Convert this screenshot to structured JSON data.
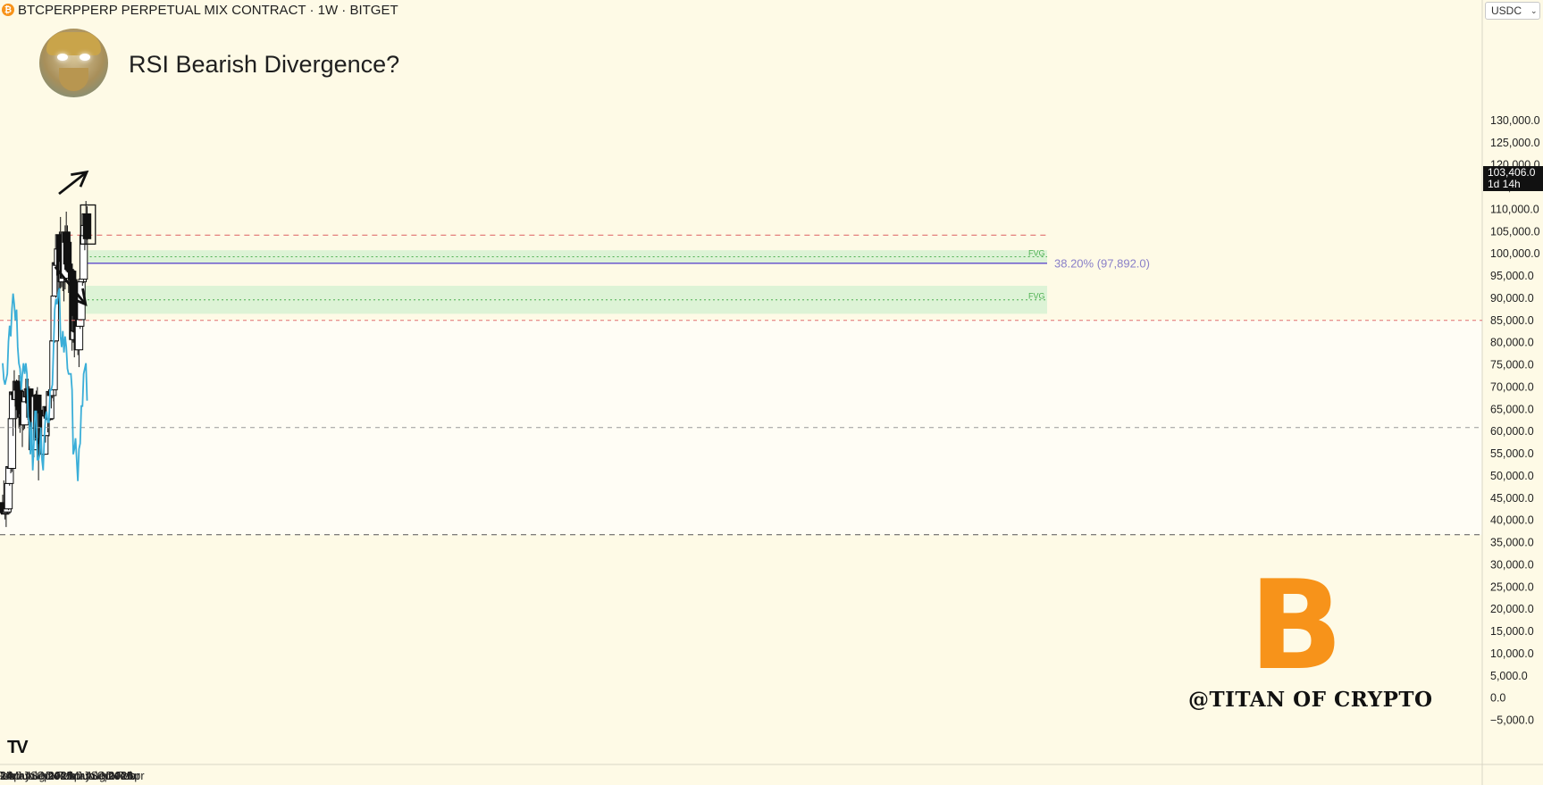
{
  "header": {
    "symbol_line": "BTCPERPPERP PERPETUAL MIX CONTRACT · 1W · BITGET",
    "coin_icon": "bitcoin-icon"
  },
  "annotation_title": "RSI Bearish Divergence?",
  "currency_select": {
    "value": "USDC"
  },
  "price_tag": {
    "price": "103,406.0",
    "countdown": "1d 14h"
  },
  "fib_label": "38.20% (97,892.0)",
  "fvg_label": "FVG",
  "tv_logo": "TV",
  "btc_logo": "B",
  "watermark": "@TITAN OF CRYPTO",
  "colors": {
    "background": "#fefae6",
    "rsi_line": "#3aaed8",
    "fvg_fill": "#d9f2d4",
    "fvg_text": "#4caf50",
    "resistance": "#e07070",
    "fib": "#6a5acd",
    "bitcoin": "#f7931a"
  },
  "chart_data": {
    "type": "candlestick",
    "title": "RSI Bearish Divergence?",
    "price_axis": {
      "ticks": [
        "130,000.0",
        "125,000.0",
        "120,000.0",
        "115,000.0",
        "110,000.0",
        "105,000.0",
        "100,000.0",
        "95,000.0",
        "90,000.0",
        "85,000.0",
        "80,000.0",
        "75,000.0",
        "70,000.0",
        "65,000.0",
        "60,000.0",
        "55,000.0",
        "50,000.0",
        "45,000.0",
        "40,000.0",
        "35,000.0",
        "30,000.0",
        "25,000.0",
        "20,000.0",
        "15,000.0",
        "10,000.0",
        "5,000.0",
        "0.0",
        "−5,000.0"
      ],
      "range": [
        -5000,
        130000
      ]
    },
    "time_axis": {
      "start": "2024-01-01",
      "end": "2026-05-01",
      "ticks": [
        {
          "label": "24",
          "date": "2024-01-01",
          "bold": true
        },
        {
          "label": "Feb",
          "date": "2024-02-01"
        },
        {
          "label": "Mar",
          "date": "2024-03-01"
        },
        {
          "label": "Apr",
          "date": "2024-04-01"
        },
        {
          "label": "May",
          "date": "2024-05-01"
        },
        {
          "label": "Jun",
          "date": "2024-06-01"
        },
        {
          "label": "Jul",
          "date": "2024-07-01"
        },
        {
          "label": "Aug",
          "date": "2024-08-01"
        },
        {
          "label": "Sep",
          "date": "2024-09-01"
        },
        {
          "label": "Oct",
          "date": "2024-10-01"
        },
        {
          "label": "Nov",
          "date": "2024-11-01"
        },
        {
          "label": "Dec",
          "date": "2024-12-01"
        },
        {
          "label": "2025",
          "date": "2025-01-01",
          "bold": true
        },
        {
          "label": "Feb",
          "date": "2025-02-01"
        },
        {
          "label": "Mar",
          "date": "2025-03-01"
        },
        {
          "label": "Apr",
          "date": "2025-04-01"
        },
        {
          "label": "May",
          "date": "2025-05-01"
        },
        {
          "label": "Jun",
          "date": "2025-06-01"
        },
        {
          "label": "Jul",
          "date": "2025-07-01"
        },
        {
          "label": "Aug",
          "date": "2025-08-01"
        },
        {
          "label": "Sep",
          "date": "2025-09-01"
        },
        {
          "label": "Oct",
          "date": "2025-10-01"
        },
        {
          "label": "Nov",
          "date": "2025-11-01"
        },
        {
          "label": "Dec",
          "date": "2025-12-01"
        },
        {
          "label": "2026",
          "date": "2026-01-01",
          "bold": true
        },
        {
          "label": "Feb",
          "date": "2026-02-01"
        },
        {
          "label": "Mar",
          "date": "2026-03-01"
        },
        {
          "label": "Apr",
          "date": "2026-04-01"
        }
      ]
    },
    "candles": [
      {
        "date": "2024-01-01",
        "o": 44000,
        "h": 45800,
        "l": 42000,
        "c": 42300
      },
      {
        "date": "2024-01-08",
        "o": 43500,
        "h": 49000,
        "l": 41500,
        "c": 41700
      },
      {
        "date": "2024-01-15",
        "o": 41700,
        "h": 43000,
        "l": 40200,
        "c": 41600
      },
      {
        "date": "2024-01-22",
        "o": 41600,
        "h": 42200,
        "l": 38500,
        "c": 41900
      },
      {
        "date": "2024-01-29",
        "o": 41900,
        "h": 43800,
        "l": 41300,
        "c": 42600
      },
      {
        "date": "2024-02-05",
        "o": 42600,
        "h": 48600,
        "l": 42300,
        "c": 48300
      },
      {
        "date": "2024-02-12",
        "o": 48300,
        "h": 52800,
        "l": 47800,
        "c": 52100
      },
      {
        "date": "2024-02-19",
        "o": 52100,
        "h": 52600,
        "l": 50600,
        "c": 51700
      },
      {
        "date": "2024-02-26",
        "o": 51700,
        "h": 64000,
        "l": 50900,
        "c": 62900
      },
      {
        "date": "2024-03-04",
        "o": 62900,
        "h": 70000,
        "l": 59000,
        "c": 68900
      },
      {
        "date": "2024-03-11",
        "o": 68900,
        "h": 73800,
        "l": 68000,
        "c": 68300
      },
      {
        "date": "2024-03-18",
        "o": 68300,
        "h": 68800,
        "l": 60800,
        "c": 67200
      },
      {
        "date": "2024-03-25",
        "o": 67200,
        "h": 71700,
        "l": 66500,
        "c": 71300
      },
      {
        "date": "2024-04-01",
        "o": 71300,
        "h": 71500,
        "l": 65000,
        "c": 69300
      },
      {
        "date": "2024-04-08",
        "o": 69300,
        "h": 72700,
        "l": 60700,
        "c": 65700
      },
      {
        "date": "2024-04-15",
        "o": 65700,
        "h": 67000,
        "l": 59700,
        "c": 64900
      },
      {
        "date": "2024-04-22",
        "o": 64900,
        "h": 67200,
        "l": 62500,
        "c": 63200
      },
      {
        "date": "2024-04-29",
        "o": 63200,
        "h": 64700,
        "l": 56500,
        "c": 64000
      },
      {
        "date": "2024-05-06",
        "o": 64000,
        "h": 65500,
        "l": 60300,
        "c": 61500
      },
      {
        "date": "2024-05-13",
        "o": 61500,
        "h": 67700,
        "l": 60600,
        "c": 66700
      },
      {
        "date": "2024-05-20",
        "o": 66700,
        "h": 71900,
        "l": 66300,
        "c": 69000
      },
      {
        "date": "2024-05-27",
        "o": 69000,
        "h": 70000,
        "l": 66600,
        "c": 67800
      },
      {
        "date": "2024-06-03",
        "o": 67800,
        "h": 71900,
        "l": 67200,
        "c": 69600
      },
      {
        "date": "2024-06-10",
        "o": 69600,
        "h": 70200,
        "l": 65000,
        "c": 66600
      },
      {
        "date": "2024-06-17",
        "o": 66600,
        "h": 66800,
        "l": 63400,
        "c": 63200
      },
      {
        "date": "2024-06-24",
        "o": 63200,
        "h": 64500,
        "l": 58500,
        "c": 62700
      },
      {
        "date": "2024-07-01",
        "o": 62700,
        "h": 63800,
        "l": 53500,
        "c": 55900
      },
      {
        "date": "2024-07-08",
        "o": 55900,
        "h": 61400,
        "l": 54200,
        "c": 60800
      },
      {
        "date": "2024-07-15",
        "o": 60800,
        "h": 68500,
        "l": 60600,
        "c": 67900
      },
      {
        "date": "2024-07-22",
        "o": 67900,
        "h": 69200,
        "l": 63500,
        "c": 68200
      },
      {
        "date": "2024-07-29",
        "o": 68200,
        "h": 70000,
        "l": 57100,
        "c": 58100
      },
      {
        "date": "2024-08-05",
        "o": 58100,
        "h": 62700,
        "l": 49000,
        "c": 58700
      },
      {
        "date": "2024-08-12",
        "o": 58700,
        "h": 61800,
        "l": 56100,
        "c": 58400
      },
      {
        "date": "2024-08-19",
        "o": 58400,
        "h": 65000,
        "l": 57800,
        "c": 64200
      },
      {
        "date": "2024-08-26",
        "o": 64200,
        "h": 64900,
        "l": 57200,
        "c": 57300
      },
      {
        "date": "2024-09-02",
        "o": 57300,
        "h": 59800,
        "l": 52500,
        "c": 54900
      },
      {
        "date": "2024-09-09",
        "o": 54900,
        "h": 60700,
        "l": 54600,
        "c": 59100
      },
      {
        "date": "2024-09-16",
        "o": 59100,
        "h": 64100,
        "l": 57500,
        "c": 63500
      },
      {
        "date": "2024-09-23",
        "o": 63500,
        "h": 66500,
        "l": 62700,
        "c": 65600
      },
      {
        "date": "2024-09-30",
        "o": 65600,
        "h": 66000,
        "l": 59800,
        "c": 63000
      },
      {
        "date": "2024-10-07",
        "o": 63000,
        "h": 64500,
        "l": 58900,
        "c": 62900
      },
      {
        "date": "2024-10-14",
        "o": 62900,
        "h": 69500,
        "l": 62400,
        "c": 69000
      },
      {
        "date": "2024-10-21",
        "o": 69000,
        "h": 69500,
        "l": 65200,
        "c": 68100
      },
      {
        "date": "2024-10-28",
        "o": 68100,
        "h": 73600,
        "l": 67500,
        "c": 69400
      },
      {
        "date": "2024-11-04",
        "o": 69400,
        "h": 81500,
        "l": 66800,
        "c": 80400
      },
      {
        "date": "2024-11-11",
        "o": 80400,
        "h": 93500,
        "l": 80000,
        "c": 90500
      },
      {
        "date": "2024-11-18",
        "o": 90500,
        "h": 99600,
        "l": 90100,
        "c": 98000
      },
      {
        "date": "2024-11-25",
        "o": 98000,
        "h": 98900,
        "l": 90700,
        "c": 97400
      },
      {
        "date": "2024-12-02",
        "o": 97400,
        "h": 104000,
        "l": 91000,
        "c": 101100
      },
      {
        "date": "2024-12-09",
        "o": 101100,
        "h": 105000,
        "l": 94200,
        "c": 104300
      },
      {
        "date": "2024-12-16",
        "o": 104300,
        "h": 108300,
        "l": 92200,
        "c": 95200
      },
      {
        "date": "2024-12-23",
        "o": 95200,
        "h": 99900,
        "l": 92500,
        "c": 93700
      },
      {
        "date": "2024-12-30",
        "o": 93700,
        "h": 99000,
        "l": 91600,
        "c": 98300
      },
      {
        "date": "2025-01-06",
        "o": 98300,
        "h": 102700,
        "l": 89300,
        "c": 94500
      },
      {
        "date": "2025-01-13",
        "o": 94500,
        "h": 106400,
        "l": 92000,
        "c": 104900
      },
      {
        "date": "2025-01-20",
        "o": 104900,
        "h": 109500,
        "l": 99500,
        "c": 102600
      },
      {
        "date": "2025-01-27",
        "o": 102600,
        "h": 106400,
        "l": 96200,
        "c": 97700
      },
      {
        "date": "2025-02-03",
        "o": 97700,
        "h": 100200,
        "l": 91200,
        "c": 96500
      },
      {
        "date": "2025-02-10",
        "o": 96500,
        "h": 99400,
        "l": 94800,
        "c": 96200
      },
      {
        "date": "2025-02-17",
        "o": 96200,
        "h": 99200,
        "l": 93400,
        "c": 96100
      },
      {
        "date": "2025-02-24",
        "o": 96100,
        "h": 96500,
        "l": 78200,
        "c": 94200
      },
      {
        "date": "2025-03-03",
        "o": 94200,
        "h": 95000,
        "l": 80000,
        "c": 80700
      },
      {
        "date": "2025-03-10",
        "o": 80700,
        "h": 85300,
        "l": 76700,
        "c": 82600
      },
      {
        "date": "2025-03-17",
        "o": 82600,
        "h": 88800,
        "l": 82000,
        "c": 86100
      },
      {
        "date": "2025-03-24",
        "o": 86100,
        "h": 88700,
        "l": 81800,
        "c": 82400
      },
      {
        "date": "2025-03-31",
        "o": 82400,
        "h": 88500,
        "l": 77200,
        "c": 78400
      },
      {
        "date": "2025-04-07",
        "o": 78400,
        "h": 86000,
        "l": 74500,
        "c": 83700
      },
      {
        "date": "2025-04-14",
        "o": 83700,
        "h": 86400,
        "l": 83100,
        "c": 85200
      },
      {
        "date": "2025-04-21",
        "o": 85200,
        "h": 95700,
        "l": 85100,
        "c": 93700
      },
      {
        "date": "2025-04-28",
        "o": 93700,
        "h": 97900,
        "l": 92800,
        "c": 94300
      },
      {
        "date": "2025-05-05",
        "o": 94300,
        "h": 104300,
        "l": 93400,
        "c": 104100
      },
      {
        "date": "2025-05-12",
        "o": 104100,
        "h": 105700,
        "l": 100800,
        "c": 106400
      },
      {
        "date": "2025-05-19",
        "o": 106400,
        "h": 111900,
        "l": 102000,
        "c": 109000
      },
      {
        "date": "2025-05-26",
        "o": 109000,
        "h": 110700,
        "l": 103100,
        "c": 103400
      }
    ],
    "rsi": {
      "upper_level": 70,
      "lower_level": 30,
      "mid_level": 50,
      "values": [
        62,
        59,
        58,
        59,
        60,
        66,
        69,
        67,
        72,
        75,
        73,
        70,
        72,
        65,
        62,
        61,
        57,
        60,
        62,
        60,
        62,
        60,
        52,
        51,
        45,
        51,
        42,
        47,
        53,
        53,
        44,
        44,
        45,
        50,
        44,
        42,
        48,
        52,
        53,
        51,
        51,
        57,
        57,
        58,
        65,
        72,
        74,
        73,
        75,
        76,
        67,
        65,
        68,
        64,
        67,
        65,
        61,
        60,
        60,
        60,
        57,
        45,
        46,
        48,
        44,
        40,
        46,
        47,
        54,
        54,
        60,
        61,
        62,
        55
      ]
    },
    "resistance_level": 104200,
    "fib": {
      "label": "38.20% (97,892.0)",
      "value": 97892
    },
    "fvg_zones": [
      {
        "top": 100800,
        "bottom": 97900,
        "start": "2025-05-05"
      },
      {
        "top": 92800,
        "bottom": 86500,
        "start": "2025-04-21"
      }
    ],
    "price_divergence": {
      "from": {
        "date": "2024-12-23",
        "price": 113500
      },
      "to": {
        "date": "2025-06-09",
        "price": 118400
      }
    },
    "rsi_divergence": {
      "from": {
        "date": "2024-11-30",
        "rsi": 80
      },
      "to": {
        "date": "2025-06-02",
        "rsi": 73
      }
    },
    "highlight_box": {
      "from": "2025-05-19",
      "to": "2025-06-02",
      "top": 111000,
      "bottom": 102200
    }
  }
}
